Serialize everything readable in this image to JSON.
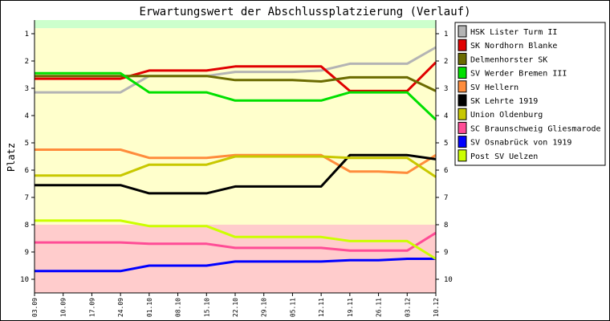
{
  "chart_data": {
    "type": "line",
    "title": "Erwartungswert der Abschlussplatzierung (Verlauf)",
    "ylabel": "Platz",
    "xlabel": "",
    "ylim": [
      0.5,
      10.5
    ],
    "y_inverted": true,
    "y_ticks": [
      1,
      2,
      3,
      4,
      5,
      6,
      7,
      8,
      9,
      10
    ],
    "x": [
      "03.09",
      "10.09",
      "17.09",
      "24.09",
      "01.10",
      "08.10",
      "15.10",
      "22.10",
      "29.10",
      "05.11",
      "12.11",
      "19.11",
      "26.11",
      "03.12",
      "10.12"
    ],
    "background_bands": [
      {
        "from": 0.5,
        "to": 0.8,
        "color": "#ccffcc"
      },
      {
        "from": 0.8,
        "to": 8.0,
        "color": "#ffffcc"
      },
      {
        "from": 8.0,
        "to": 10.5,
        "color": "#ffcccc"
      }
    ],
    "grid": false,
    "legend_position": "right",
    "series": [
      {
        "name": "HSK Lister Turm II",
        "color": "#b4b4b4",
        "values": [
          3.15,
          3.15,
          3.15,
          3.15,
          2.55,
          2.55,
          2.55,
          2.4,
          2.4,
          2.4,
          2.35,
          2.1,
          2.1,
          2.1,
          1.5
        ]
      },
      {
        "name": "SK Nordhorn Blanke",
        "color": "#e00000",
        "values": [
          2.65,
          2.65,
          2.65,
          2.65,
          2.35,
          2.35,
          2.35,
          2.2,
          2.2,
          2.2,
          2.2,
          3.1,
          3.1,
          3.1,
          2.05
        ]
      },
      {
        "name": "Delmenhorster SK",
        "color": "#6b6b00",
        "values": [
          2.55,
          2.55,
          2.55,
          2.55,
          2.55,
          2.55,
          2.55,
          2.7,
          2.7,
          2.7,
          2.75,
          2.6,
          2.6,
          2.6,
          3.1
        ]
      },
      {
        "name": "SV Werder Bremen III",
        "color": "#00e000",
        "values": [
          2.45,
          2.45,
          2.45,
          2.45,
          3.15,
          3.15,
          3.15,
          3.45,
          3.45,
          3.45,
          3.45,
          3.15,
          3.15,
          3.15,
          4.15
        ]
      },
      {
        "name": "SV Hellern",
        "color": "#ff8c3c",
        "values": [
          5.25,
          5.25,
          5.25,
          5.25,
          5.55,
          5.55,
          5.55,
          5.45,
          5.45,
          5.45,
          5.45,
          6.05,
          6.05,
          6.1,
          5.45
        ]
      },
      {
        "name": "SK Lehrte 1919",
        "color": "#000000",
        "values": [
          6.55,
          6.55,
          6.55,
          6.55,
          6.85,
          6.85,
          6.85,
          6.6,
          6.6,
          6.6,
          6.6,
          5.45,
          5.45,
          5.45,
          5.6
        ]
      },
      {
        "name": "Union Oldenburg",
        "color": "#c8c800",
        "values": [
          6.2,
          6.2,
          6.2,
          6.2,
          5.8,
          5.8,
          5.8,
          5.5,
          5.5,
          5.5,
          5.5,
          5.55,
          5.55,
          5.55,
          6.25
        ]
      },
      {
        "name": "SC Braunschweig Gliesmarode",
        "color": "#ff4c96",
        "values": [
          8.65,
          8.65,
          8.65,
          8.65,
          8.7,
          8.7,
          8.7,
          8.85,
          8.85,
          8.85,
          8.85,
          8.95,
          8.95,
          8.95,
          8.3
        ]
      },
      {
        "name": "SV Osnabrück von 1919",
        "color": "#0000ff",
        "values": [
          9.7,
          9.7,
          9.7,
          9.7,
          9.5,
          9.5,
          9.5,
          9.35,
          9.35,
          9.35,
          9.35,
          9.3,
          9.3,
          9.25,
          9.25
        ]
      },
      {
        "name": "Post SV Uelzen",
        "color": "#ccff00",
        "values": [
          7.85,
          7.85,
          7.85,
          7.85,
          8.05,
          8.05,
          8.05,
          8.45,
          8.45,
          8.45,
          8.45,
          8.6,
          8.6,
          8.6,
          9.25
        ]
      }
    ]
  }
}
